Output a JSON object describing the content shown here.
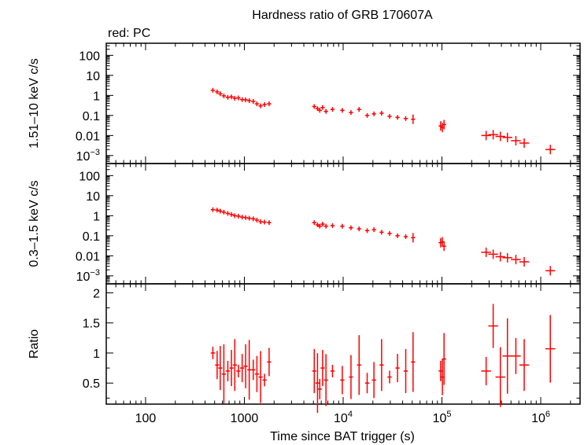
{
  "figure": {
    "title": "Hardness ratio of GRB 170607A",
    "legend_text": "red: PC",
    "xlabel": "Time since BAT trigger (s)",
    "series_color": "#ff0000"
  },
  "chart_data": [
    {
      "type": "scatter",
      "panel": "top",
      "ylabel": "1.51–10 keV c/s",
      "xscale": "log",
      "yscale": "log",
      "xlim": [
        40,
        2500000
      ],
      "ylim": [
        0.0004,
        400
      ],
      "yticks": [
        {
          "value": 100,
          "label": "100"
        },
        {
          "value": 10,
          "label": "10"
        },
        {
          "value": 1,
          "label": "1"
        },
        {
          "value": 0.1,
          "label": "0.1"
        },
        {
          "value": 0.01,
          "label": "0.01"
        },
        {
          "value": 0.001,
          "label": "10",
          "sup": "−3"
        }
      ],
      "series": [
        {
          "name": "PC",
          "x": [
            480,
            530,
            570,
            620,
            680,
            740,
            800,
            870,
            950,
            1030,
            1120,
            1230,
            1340,
            1460,
            1600,
            1780,
            5100,
            5500,
            5800,
            6200,
            6700,
            7800,
            9800,
            12000,
            14500,
            17500,
            20500,
            24500,
            29500,
            35500,
            43000,
            51000,
            97000,
            101000,
            105000,
            280000,
            330000,
            390000,
            460000,
            560000,
            680000,
            1250000
          ],
          "y": [
            1.8,
            1.5,
            1.2,
            0.95,
            0.8,
            0.85,
            0.72,
            0.75,
            0.62,
            0.6,
            0.55,
            0.5,
            0.38,
            0.3,
            0.35,
            0.38,
            0.28,
            0.22,
            0.18,
            0.25,
            0.16,
            0.2,
            0.18,
            0.14,
            0.2,
            0.1,
            0.12,
            0.13,
            0.09,
            0.08,
            0.07,
            0.065,
            0.03,
            0.025,
            0.035,
            0.01,
            0.011,
            0.009,
            0.008,
            0.0055,
            0.0042,
            0.002
          ]
        }
      ]
    },
    {
      "type": "scatter",
      "panel": "middle",
      "ylabel": "0.3–1.5 keV c/s",
      "xscale": "log",
      "yscale": "log",
      "xlim": [
        40,
        2500000
      ],
      "ylim": [
        0.0004,
        400
      ],
      "yticks": [
        {
          "value": 100,
          "label": "100"
        },
        {
          "value": 10,
          "label": "10"
        },
        {
          "value": 1,
          "label": "1"
        },
        {
          "value": 0.1,
          "label": "0.1"
        },
        {
          "value": 0.01,
          "label": "0.01"
        },
        {
          "value": 0.001,
          "label": "10",
          "sup": "−3"
        }
      ],
      "series": [
        {
          "name": "PC",
          "x": [
            480,
            530,
            570,
            620,
            680,
            740,
            800,
            870,
            950,
            1030,
            1120,
            1230,
            1340,
            1460,
            1600,
            1780,
            5100,
            5500,
            5800,
            6200,
            6700,
            7800,
            9800,
            12000,
            14500,
            17500,
            20500,
            24500,
            29500,
            35500,
            43000,
            51000,
            97000,
            101000,
            105000,
            280000,
            330000,
            390000,
            460000,
            560000,
            680000,
            1250000
          ],
          "y": [
            2.0,
            1.9,
            1.7,
            1.5,
            1.3,
            1.15,
            1.0,
            0.95,
            0.85,
            0.8,
            0.75,
            0.7,
            0.6,
            0.5,
            0.48,
            0.45,
            0.45,
            0.35,
            0.3,
            0.38,
            0.3,
            0.32,
            0.3,
            0.25,
            0.22,
            0.18,
            0.2,
            0.15,
            0.13,
            0.1,
            0.09,
            0.08,
            0.045,
            0.05,
            0.03,
            0.015,
            0.012,
            0.009,
            0.008,
            0.0065,
            0.005,
            0.0018
          ]
        }
      ]
    },
    {
      "type": "scatter",
      "panel": "bottom",
      "ylabel": "Ratio",
      "xscale": "log",
      "yscale": "linear",
      "xlim": [
        40,
        2500000
      ],
      "ylim": [
        0.15,
        2.15
      ],
      "yticks": [
        {
          "value": 2,
          "label": "2"
        },
        {
          "value": 1.5,
          "label": "1.5"
        },
        {
          "value": 1,
          "label": "1"
        },
        {
          "value": 0.5,
          "label": "0.5"
        }
      ],
      "xticks": [
        {
          "value": 100,
          "label": "100"
        },
        {
          "value": 1000,
          "label": "1000"
        },
        {
          "value": 10000,
          "label": "10",
          "sup": "4"
        },
        {
          "value": 100000,
          "label": "10",
          "sup": "5"
        },
        {
          "value": 1000000,
          "label": "10",
          "sup": "6"
        }
      ],
      "series": [
        {
          "name": "PC",
          "x": [
            480,
            530,
            570,
            620,
            680,
            740,
            800,
            870,
            950,
            1030,
            1120,
            1230,
            1340,
            1460,
            1600,
            1780,
            5100,
            5500,
            5800,
            6200,
            6700,
            7800,
            9800,
            12000,
            14500,
            17500,
            20500,
            24500,
            29500,
            35500,
            43000,
            51000,
            97000,
            101000,
            105000,
            280000,
            330000,
            390000,
            460000,
            560000,
            680000,
            1250000
          ],
          "y": [
            1.0,
            0.8,
            0.75,
            0.65,
            0.7,
            0.75,
            0.8,
            0.7,
            0.75,
            0.78,
            0.72,
            0.72,
            0.65,
            0.6,
            0.55,
            0.85,
            0.7,
            0.5,
            0.4,
            0.75,
            0.55,
            0.7,
            0.55,
            0.6,
            0.8,
            0.5,
            0.55,
            0.8,
            0.6,
            0.75,
            0.7,
            0.85,
            0.7,
            0.6,
            0.9,
            0.7,
            1.45,
            0.6,
            0.95,
            0.95,
            0.8,
            1.07
          ]
        }
      ]
    }
  ]
}
